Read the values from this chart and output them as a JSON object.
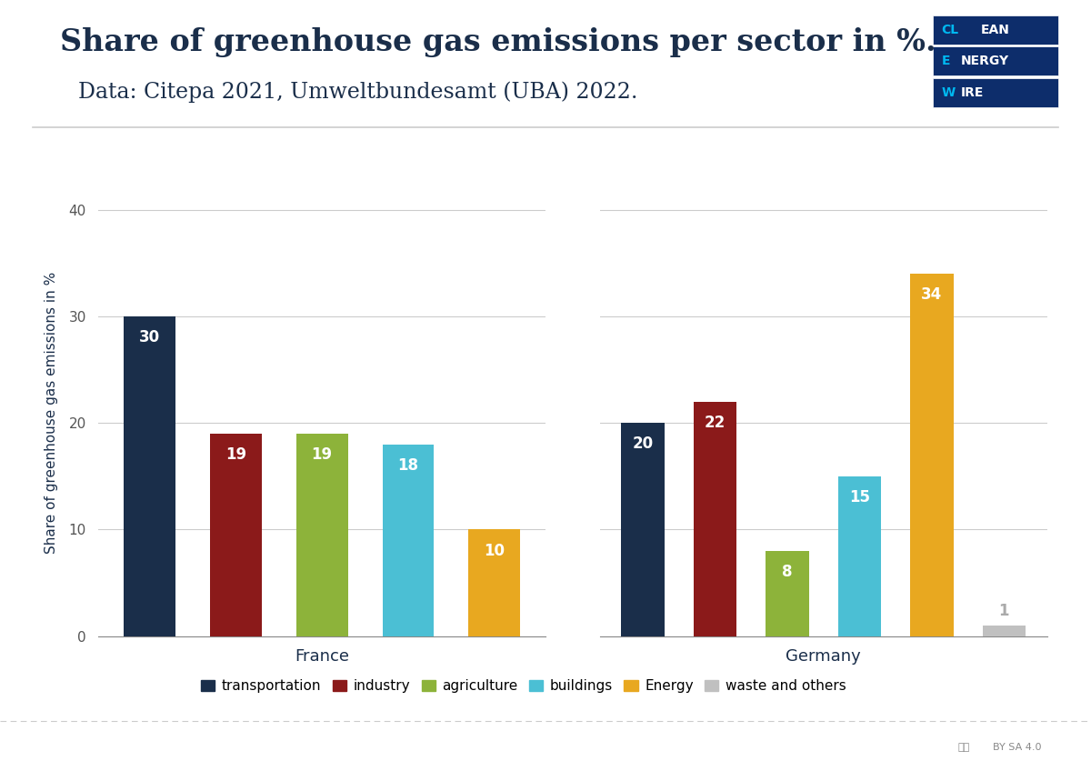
{
  "title": "Share of greenhouse gas emissions per sector in %.",
  "subtitle": "Data: Citepa 2021, Umweltbundesamt (UBA) 2022.",
  "ylabel": "Share of greenhouse gas emissions in %",
  "countries": [
    "France",
    "Germany"
  ],
  "categories": [
    "transportation",
    "industry",
    "agriculture",
    "buildings",
    "Energy",
    "waste and others"
  ],
  "colors": [
    "#1a2e4a",
    "#8b1a1a",
    "#8db33a",
    "#4bbfd4",
    "#e8a820",
    "#c0c0c0"
  ],
  "france_values": [
    30,
    19,
    19,
    18,
    10,
    null
  ],
  "germany_values": [
    20,
    22,
    8,
    15,
    34,
    1
  ],
  "ylim": [
    0,
    42
  ],
  "yticks": [
    0,
    10,
    20,
    30,
    40
  ],
  "background_color": "#ffffff",
  "title_color": "#1a2e4a",
  "title_fontsize": 24,
  "subtitle_fontsize": 17,
  "bar_label_color": "#ffffff",
  "bar_label_fontsize": 12,
  "logo_dark": "#0d2d6b",
  "logo_light": "#00b8f0",
  "separator_color": "#cccccc",
  "tick_label_color": "#555555",
  "country_label_fontsize": 13,
  "ylabel_fontsize": 11
}
